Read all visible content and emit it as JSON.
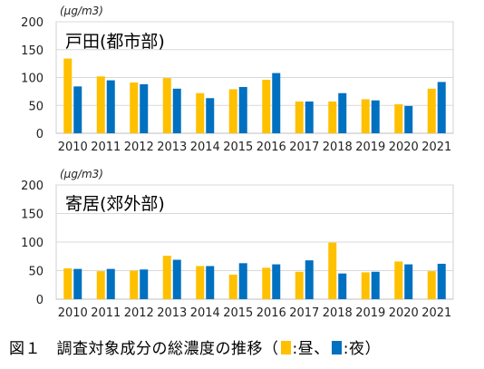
{
  "chart_data": [
    {
      "type": "bar",
      "title": "戸田(都市部)",
      "unit_label": "(μg/m3)",
      "categories": [
        "2010",
        "2011",
        "2012",
        "2013",
        "2014",
        "2015",
        "2016",
        "2017",
        "2018",
        "2019",
        "2020",
        "2021"
      ],
      "series": [
        {
          "name": "昼",
          "color": "#FFC000",
          "values": [
            134,
            102,
            91,
            99,
            72,
            79,
            96,
            57,
            57,
            61,
            52,
            80
          ]
        },
        {
          "name": "夜",
          "color": "#0070C0",
          "values": [
            84,
            95,
            88,
            80,
            63,
            83,
            108,
            57,
            72,
            59,
            49,
            92
          ]
        }
      ],
      "ylim": [
        0,
        200
      ],
      "yticks": [
        0,
        50,
        100,
        150,
        200
      ],
      "grid": true
    },
    {
      "type": "bar",
      "title": "寄居(郊外部)",
      "unit_label": "(μg/m3)",
      "categories": [
        "2010",
        "2011",
        "2012",
        "2013",
        "2014",
        "2015",
        "2016",
        "2017",
        "2018",
        "2019",
        "2020",
        "2021"
      ],
      "series": [
        {
          "name": "昼",
          "color": "#FFC000",
          "values": [
            54,
            49,
            50,
            76,
            58,
            43,
            55,
            48,
            99,
            47,
            66,
            49
          ]
        },
        {
          "name": "夜",
          "color": "#0070C0",
          "values": [
            53,
            53,
            52,
            69,
            58,
            63,
            61,
            68,
            45,
            48,
            61,
            62
          ]
        }
      ],
      "ylim": [
        0,
        200
      ],
      "yticks": [
        0,
        50,
        100,
        150,
        200
      ],
      "grid": true
    }
  ],
  "caption": {
    "prefix": "図１　調査対象成分の総濃度の推移（",
    "day_label": ":昼、",
    "night_label": ":夜）",
    "day_color": "#FFC000",
    "night_color": "#0070C0"
  }
}
